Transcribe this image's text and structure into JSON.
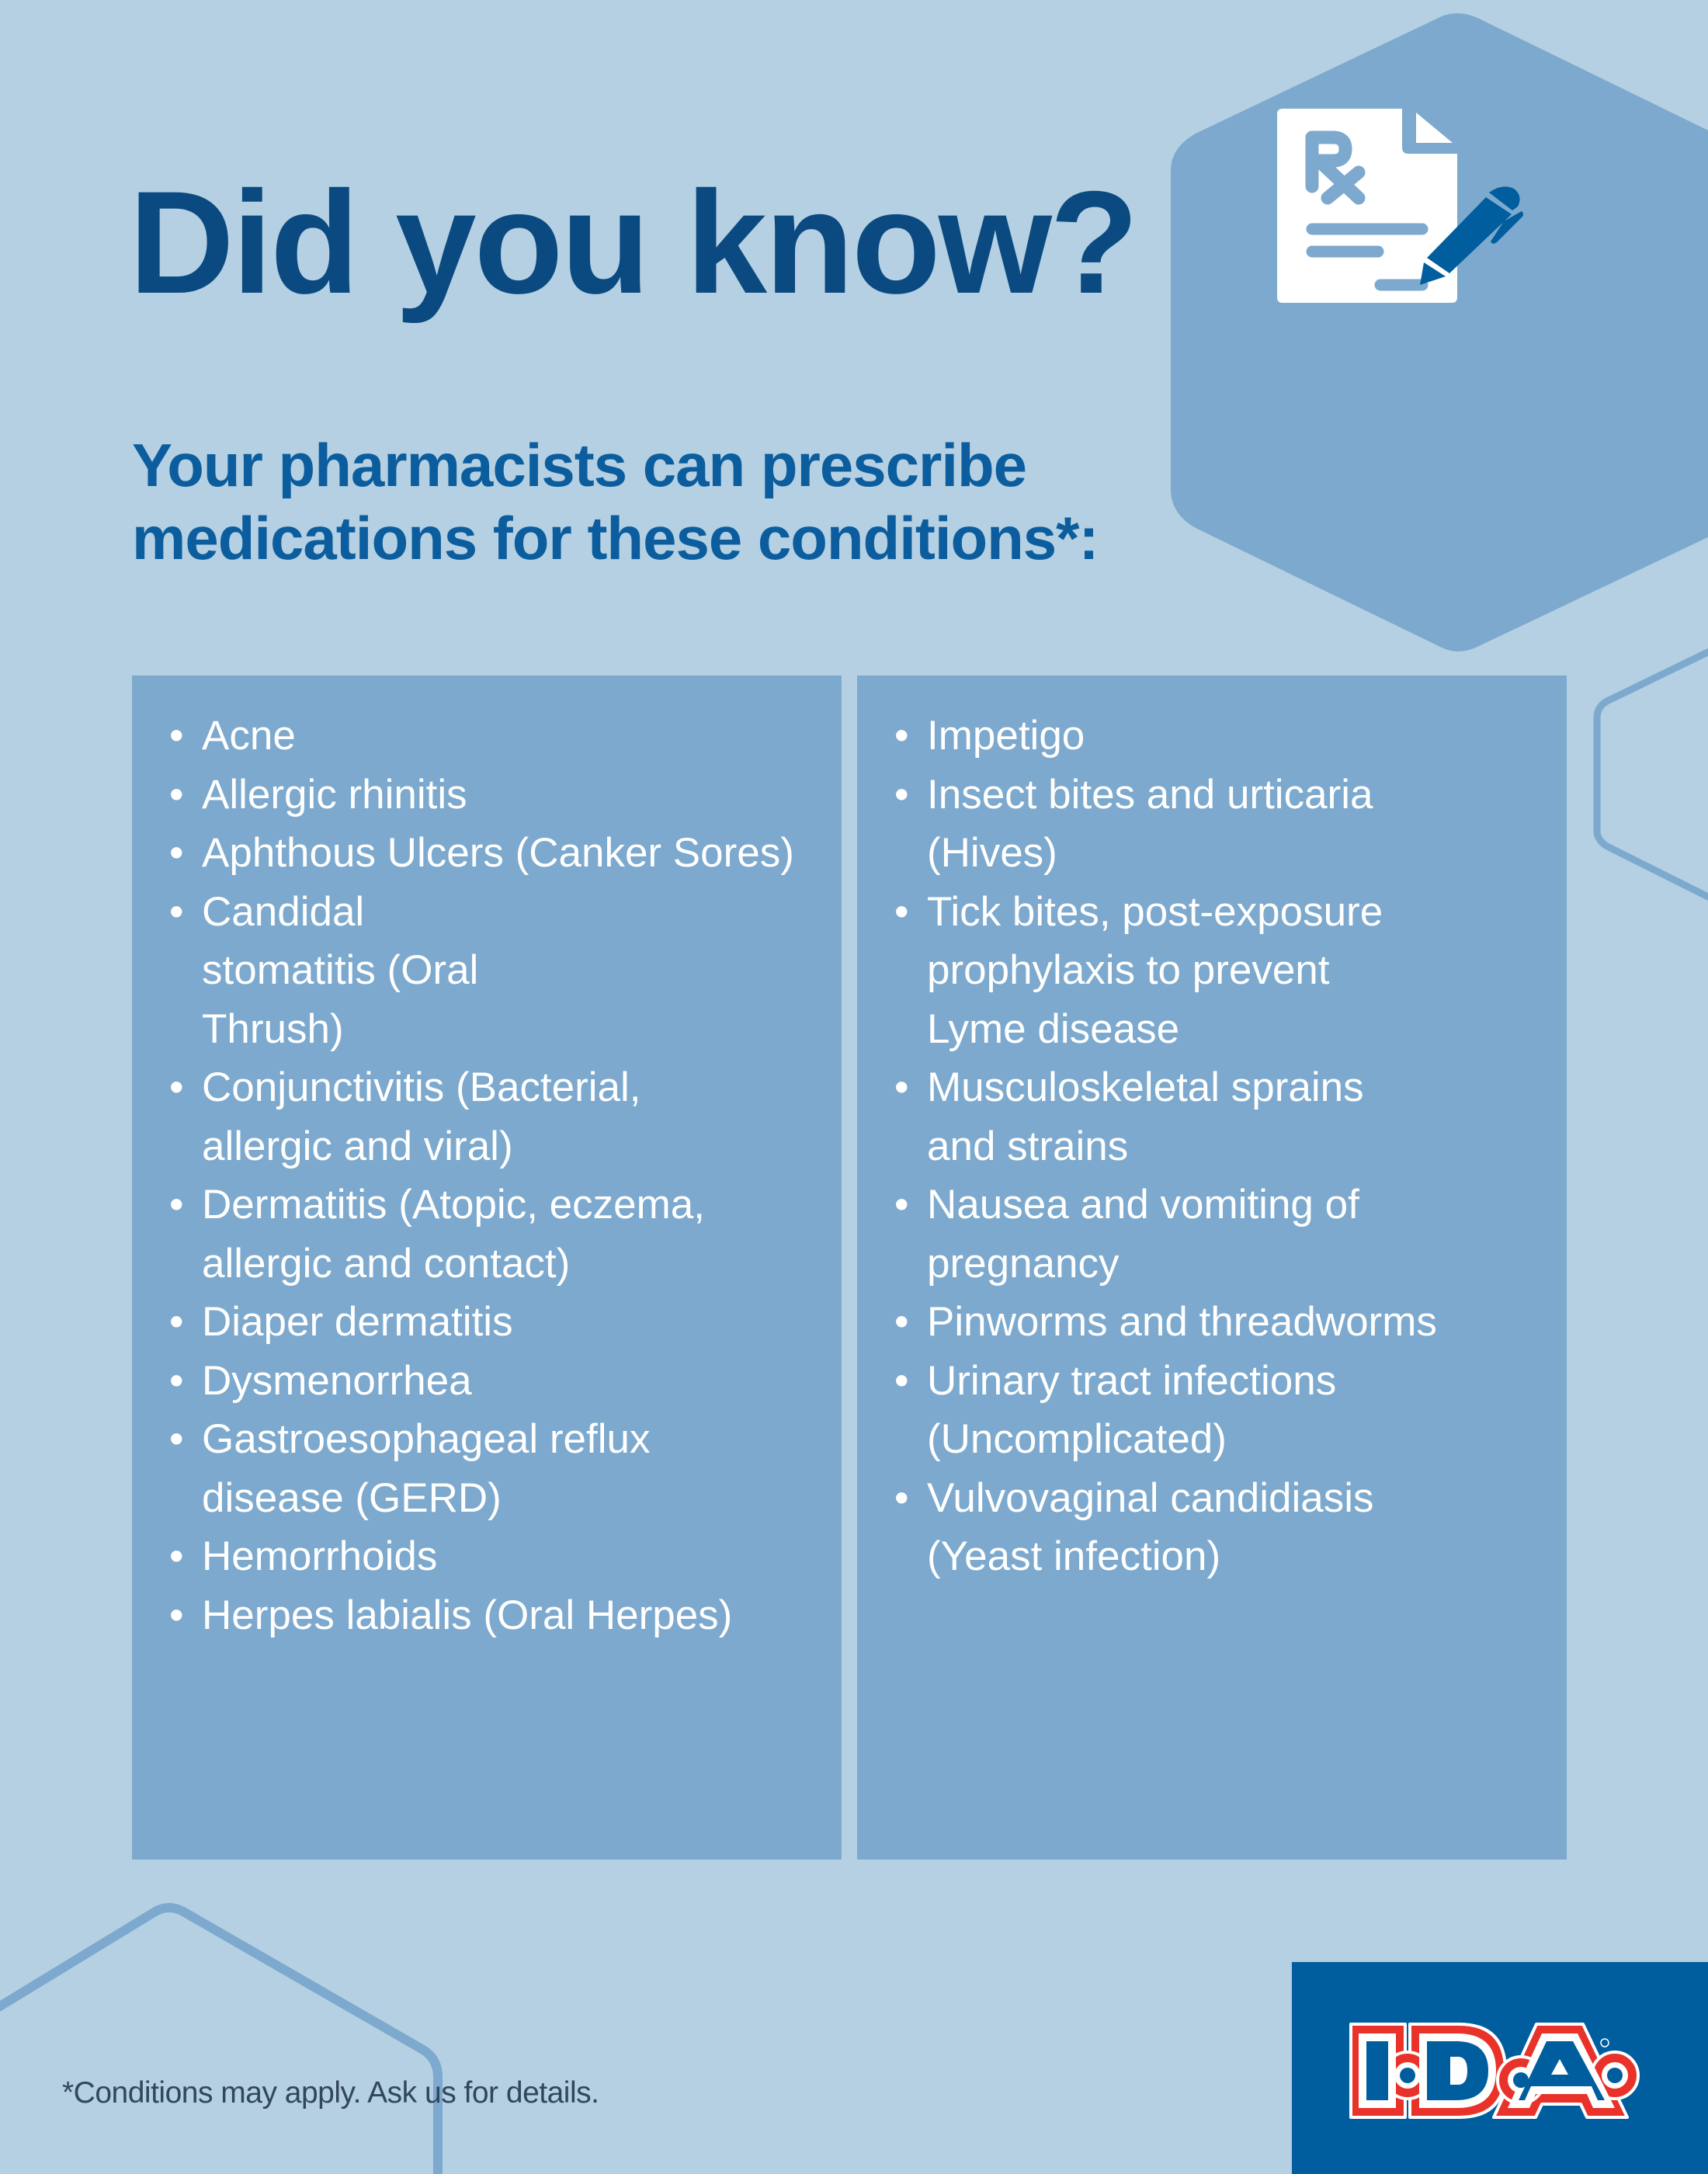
{
  "header": {
    "title": "Did you know?",
    "subtitle_line1": "Your pharmacists can prescribe",
    "subtitle_line2": "medications for these conditions*:"
  },
  "conditions": {
    "left": [
      "Acne",
      "Allergic rhinitis",
      "Aphthous Ulcers (Canker Sores)",
      "Candidal stomatitis (Oral Thrush)",
      "Conjunctivitis (Bacterial, allergic and viral)",
      "Dermatitis (Atopic, eczema, allergic and contact)",
      "Diaper dermatitis",
      "Dysmenorrhea",
      "Gastroesophageal reflux disease (GERD)",
      "Hemorrhoids",
      "Herpes labialis (Oral Herpes)"
    ],
    "right": [
      "Impetigo",
      "Insect bites and urticaria (Hives)",
      "Tick bites, post-exposure prophylaxis to prevent Lyme disease",
      "Musculoskeletal sprains and strains",
      "Nausea and vomiting of pregnancy",
      "Pinworms and threadworms",
      "Urinary tract infections (Uncomplicated)",
      "Vulvovaginal candidiasis (Yeast infection)"
    ]
  },
  "footer": {
    "note": "*Conditions may apply. Ask us for details.",
    "logo_text": "I·D·A"
  },
  "icons": {
    "hero": "prescription-document-with-pen-icon"
  },
  "colors": {
    "background": "#b4d0e2",
    "panel": "#7ca9cd",
    "title": "#0b4a80",
    "subtitle": "#0b5d9e",
    "brand_blue": "#005e9f",
    "brand_red": "#e8322a"
  }
}
